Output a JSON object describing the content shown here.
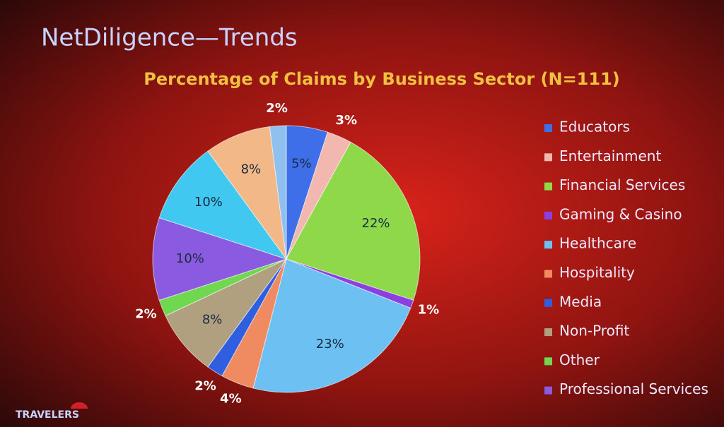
{
  "header": {
    "title": "NetDiligence—Trends"
  },
  "logo": "TRAVELERS",
  "chart_data": {
    "type": "pie",
    "title": "Percentage of Claims by Business Sector (N=111)",
    "categories": [
      "Educators",
      "Entertainment",
      "Financial Services",
      "Gaming & Casino",
      "Healthcare",
      "Hospitality",
      "Media",
      "Non-Profit",
      "Other",
      "Professional Services",
      null,
      null,
      null
    ],
    "values": [
      5,
      3,
      22,
      1,
      23,
      4,
      2,
      8,
      2,
      10,
      10,
      8,
      2
    ],
    "value_labels": [
      "5%",
      "3%",
      "22%",
      "1%",
      "23%",
      "4%",
      "2%",
      "8%",
      "2%",
      "10%",
      "10%",
      "8%",
      "2%"
    ],
    "colors": [
      "#3f6fe8",
      "#f2b8b0",
      "#8ed84a",
      "#8a3fe0",
      "#6cc0f2",
      "#f08a60",
      "#2f5fe0",
      "#b0a080",
      "#70d850",
      "#8a5ae0",
      "#40c8f0",
      "#f2b888",
      "#90c0f0"
    ],
    "legend": "right"
  }
}
